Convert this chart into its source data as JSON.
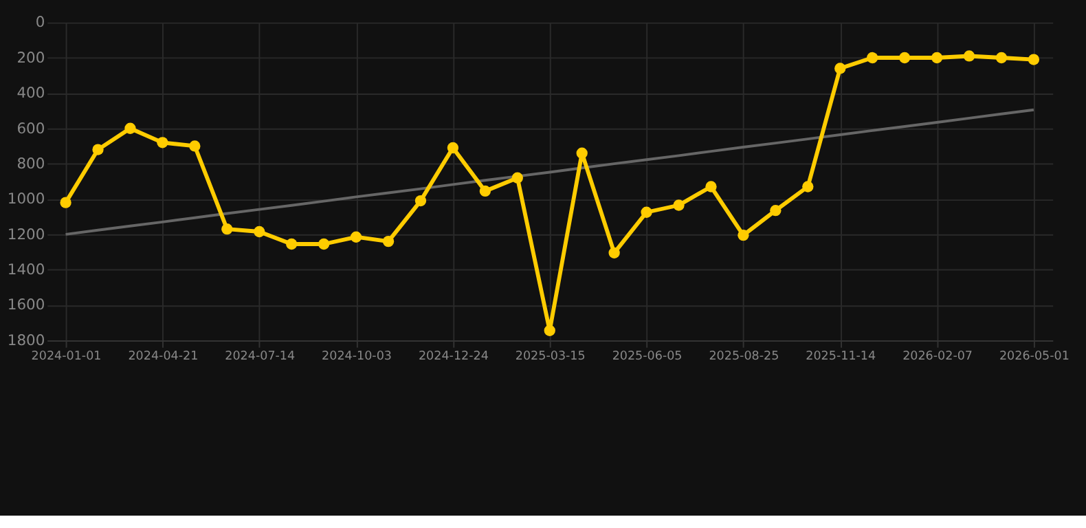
{
  "chart_data": {
    "type": "line",
    "categories": [
      "2024-01-01",
      null,
      null,
      "2024-04-21",
      null,
      null,
      "2024-07-14",
      null,
      null,
      "2024-10-03",
      null,
      null,
      "2024-12-24",
      null,
      null,
      "2025-03-15",
      null,
      null,
      "2025-06-05",
      null,
      null,
      "2025-08-25",
      null,
      null,
      "2025-11-14",
      null,
      null,
      "2026-02-07",
      null,
      null,
      "2026-05-01"
    ],
    "series": [
      {
        "color": "#ffcc00",
        "marker": "circle",
        "values": [
          1020,
          720,
          600,
          680,
          700,
          1170,
          1185,
          1255,
          1255,
          1215,
          1240,
          1010,
          710,
          955,
          880,
          1745,
          740,
          1305,
          1075,
          1035,
          930,
          1205,
          1065,
          930,
          260,
          200,
          200,
          200,
          190,
          200,
          210
        ]
      },
      {
        "color": "#666666",
        "marker": "none",
        "values": [
          1200,
          1176,
          1153,
          1130,
          1106,
          1082,
          1059,
          1036,
          1012,
          988,
          965,
          942,
          918,
          894,
          871,
          848,
          824,
          800,
          777,
          754,
          730,
          706,
          683,
          660,
          636,
          612,
          589,
          566,
          542,
          518,
          495
        ]
      }
    ],
    "ylim": [
      1800,
      0
    ],
    "yticks": [
      0,
      200,
      400,
      600,
      800,
      1000,
      1200,
      1400,
      1600,
      1800
    ],
    "grid": true
  }
}
